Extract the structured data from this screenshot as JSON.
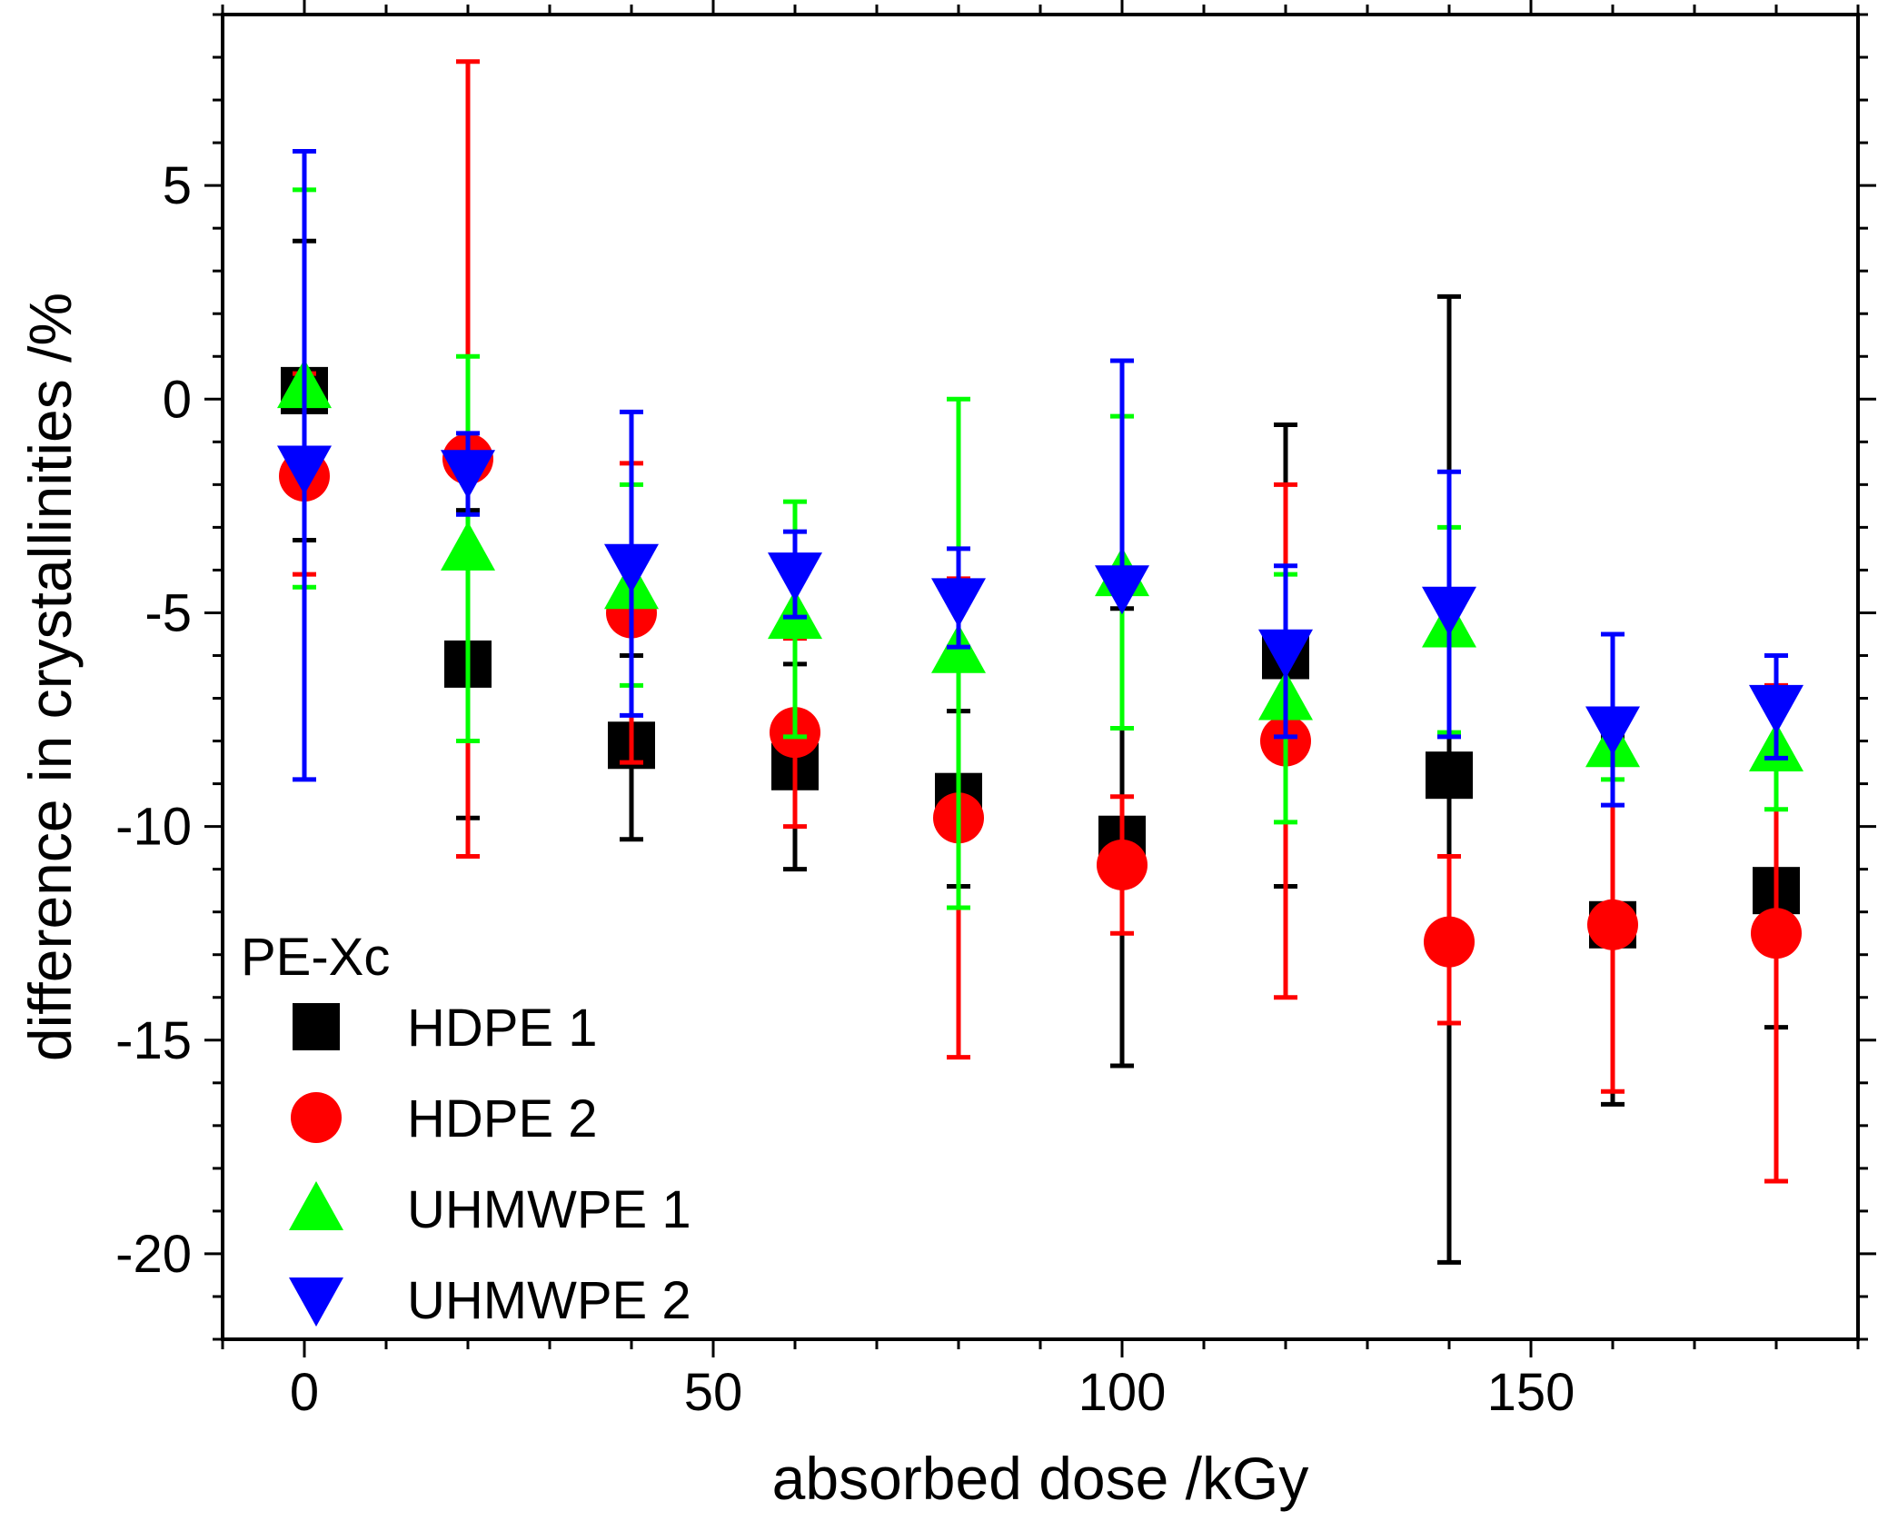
{
  "chart_data": {
    "type": "scatter",
    "title": "",
    "xlabel": "absorbed dose /kGy",
    "ylabel": "difference in crystallinities /%",
    "xlim": [
      -10,
      190
    ],
    "ylim": [
      -22,
      9
    ],
    "xticks": [
      0,
      50,
      100,
      150
    ],
    "xtick_labels": [
      "0",
      "50",
      "100",
      "150"
    ],
    "yticks": [
      5,
      0,
      -5,
      -10,
      -15,
      -20
    ],
    "ytick_labels": [
      "5",
      "0",
      "-5",
      "-10",
      "-15",
      "-20"
    ],
    "grid": false,
    "legend_title": "PE-Xc",
    "legend_position": "bottom-left",
    "series": [
      {
        "name": "HDPE 1",
        "color": "#000000",
        "marker": "square",
        "x": [
          0,
          20,
          40,
          60,
          80,
          100,
          120,
          140,
          160,
          180
        ],
        "y": [
          0.2,
          -6.2,
          -8.1,
          -8.6,
          -9.3,
          -10.3,
          -6.0,
          -8.8,
          -12.3,
          -11.5
        ],
        "err_low": [
          -3.3,
          -9.8,
          -10.3,
          -11.0,
          -11.4,
          -15.6,
          -11.4,
          -20.2,
          -16.5,
          -14.7
        ],
        "err_high": [
          3.7,
          -2.6,
          -6.0,
          -6.2,
          -7.3,
          -4.9,
          -0.6,
          2.4,
          -7.9,
          -8.3
        ]
      },
      {
        "name": "HDPE 2",
        "color": "#ff0000",
        "marker": "circle",
        "x": [
          0,
          20,
          40,
          60,
          80,
          100,
          120,
          140,
          160,
          180
        ],
        "y": [
          -1.8,
          -1.4,
          -5.0,
          -7.8,
          -9.8,
          -10.9,
          -8.0,
          -12.7,
          -12.3,
          -12.5
        ],
        "err_low": [
          -4.1,
          -10.7,
          -8.5,
          -10.0,
          -15.4,
          -12.5,
          -14.0,
          -14.6,
          -16.2,
          -18.3
        ],
        "err_high": [
          0.6,
          7.9,
          -1.5,
          -5.6,
          -4.2,
          -9.3,
          -2.0,
          -10.7,
          -8.4,
          -6.7
        ]
      },
      {
        "name": "UHMWPE 1",
        "color": "#00ff00",
        "marker": "triangle-up",
        "x": [
          0,
          20,
          40,
          60,
          80,
          100,
          120,
          140,
          160,
          180
        ],
        "y": [
          0.3,
          -3.5,
          -4.4,
          -5.1,
          -5.9,
          -4.1,
          -7.0,
          -5.3,
          -8.1,
          -8.2
        ],
        "err_low": [
          -4.4,
          -8.0,
          -6.7,
          -7.9,
          -11.9,
          -7.7,
          -9.9,
          -7.8,
          -8.9,
          -9.6
        ],
        "err_high": [
          4.9,
          1.0,
          -2.0,
          -2.4,
          0.0,
          -0.4,
          -4.1,
          -3.0,
          -7.3,
          -6.9
        ]
      },
      {
        "name": "UHMWPE 2",
        "color": "#0000ff",
        "marker": "triangle-down",
        "x": [
          0,
          20,
          40,
          60,
          80,
          100,
          120,
          140,
          160,
          180
        ],
        "y": [
          -1.6,
          -1.7,
          -3.9,
          -4.1,
          -4.7,
          -4.4,
          -5.9,
          -4.9,
          -7.7,
          -7.2
        ],
        "err_low": [
          -8.9,
          -2.7,
          -7.4,
          -5.1,
          -5.8,
          -4.2,
          -7.9,
          -7.9,
          -9.5,
          -8.4
        ],
        "err_high": [
          5.8,
          -0.8,
          -0.3,
          -3.1,
          -3.5,
          0.9,
          -3.9,
          -1.7,
          -5.5,
          -6.0
        ]
      }
    ]
  }
}
